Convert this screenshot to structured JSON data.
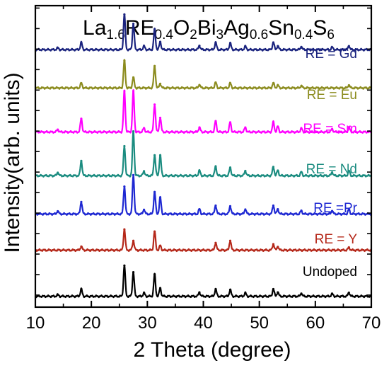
{
  "chart_data": {
    "type": "line",
    "title": {
      "segments": [
        {
          "text": "La",
          "sub": false
        },
        {
          "text": "1.6",
          "sub": true
        },
        {
          "text": "RE",
          "sub": false
        },
        {
          "text": "0.4",
          "sub": true
        },
        {
          "text": "O",
          "sub": false
        },
        {
          "text": "2",
          "sub": true
        },
        {
          "text": "Bi",
          "sub": false
        },
        {
          "text": "3",
          "sub": true
        },
        {
          "text": "Ag",
          "sub": false
        },
        {
          "text": "0.6",
          "sub": true
        },
        {
          "text": "Sn",
          "sub": false
        },
        {
          "text": "0.4",
          "sub": true
        },
        {
          "text": "S",
          "sub": false
        },
        {
          "text": "6",
          "sub": true
        }
      ]
    },
    "xlabel": "2 Theta (degree)",
    "ylabel": "Intensity(arb. units)",
    "xlim": [
      10,
      70
    ],
    "xticks": [
      "10",
      "20",
      "30",
      "40",
      "50",
      "60",
      "70"
    ],
    "ylim": [
      0,
      100
    ],
    "grid": false,
    "series": [
      {
        "name": "RE = Gd",
        "color": "#1a237e",
        "offset": 85.4,
        "x": [
          14.0,
          18.2,
          25.9,
          27.5,
          29.4,
          31.3,
          32.3,
          39.3,
          42.2,
          44.8,
          47.5,
          52.5,
          53.3,
          57.5,
          63.0,
          66.0
        ],
        "y": [
          0.6,
          2.4,
          11.7,
          8.6,
          1.2,
          6.8,
          2.6,
          1.3,
          2.4,
          2.2,
          1.1,
          2.4,
          1.2,
          0.9,
          0.8,
          1.2
        ]
      },
      {
        "name": "RE = Eu",
        "color": "#8c8c1f",
        "offset": 72.7,
        "x": [
          18.2,
          25.9,
          27.5,
          31.3,
          32.3,
          39.3,
          42.2,
          44.8,
          52.5,
          53.3,
          57.5,
          66.0
        ],
        "y": [
          1.6,
          9.1,
          3.5,
          7.3,
          1.4,
          1.0,
          1.8,
          1.6,
          1.6,
          0.9,
          0.7,
          0.9
        ]
      },
      {
        "name": "RE = Sm",
        "color": "#ff00ff",
        "offset": 58.1,
        "x": [
          14.0,
          18.2,
          25.9,
          27.5,
          29.4,
          31.3,
          32.3,
          39.3,
          42.2,
          44.8,
          47.5,
          52.5,
          53.3,
          57.5,
          63.0,
          66.0
        ],
        "y": [
          0.8,
          4.4,
          13.6,
          13.6,
          1.3,
          9.1,
          4.7,
          1.5,
          3.6,
          3.2,
          1.5,
          3.3,
          1.8,
          1.2,
          1.0,
          1.6
        ]
      },
      {
        "name": "RE = Nd",
        "color": "#1b8c80",
        "offset": 43.6,
        "x": [
          14.0,
          18.2,
          25.9,
          27.5,
          29.4,
          31.3,
          32.3,
          39.3,
          42.2,
          44.8,
          47.5,
          52.5,
          53.3,
          57.5,
          63.0,
          66.0
        ],
        "y": [
          1.0,
          4.9,
          9.8,
          14.7,
          1.5,
          6.8,
          6.8,
          1.7,
          3.1,
          2.7,
          1.6,
          2.9,
          1.7,
          1.2,
          1.1,
          1.6
        ]
      },
      {
        "name": "RE =Pr",
        "color": "#1e28d2",
        "offset": 30.9,
        "x": [
          14.0,
          18.2,
          25.9,
          27.5,
          29.4,
          31.3,
          32.3,
          39.3,
          42.2,
          44.8,
          47.5,
          52.5,
          53.3,
          57.5,
          63.0,
          66.0
        ],
        "y": [
          0.9,
          4.0,
          9.1,
          12.9,
          1.4,
          7.3,
          5.5,
          1.6,
          2.8,
          2.6,
          1.5,
          2.8,
          1.6,
          1.1,
          1.0,
          1.5
        ]
      },
      {
        "name": "RE = Y",
        "color": "#b5281a",
        "offset": 18.9,
        "x": [
          18.2,
          25.9,
          27.5,
          31.3,
          32.3,
          42.2,
          44.8,
          52.5,
          53.3,
          66.0
        ],
        "y": [
          1.2,
          6.9,
          3.1,
          6.2,
          1.5,
          2.4,
          3.1,
          2.0,
          1.1,
          0.9
        ]
      },
      {
        "name": "Undoped",
        "color": "#000000",
        "offset": 3.6,
        "x": [
          14.0,
          18.2,
          25.9,
          27.5,
          29.4,
          31.3,
          32.3,
          39.3,
          42.2,
          44.8,
          47.5,
          52.5,
          53.3,
          57.5,
          63.0,
          66.0
        ],
        "y": [
          0.5,
          2.4,
          10.2,
          8.0,
          1.1,
          7.3,
          2.7,
          1.3,
          2.4,
          2.2,
          1.1,
          2.4,
          1.3,
          0.9,
          0.8,
          1.2
        ]
      }
    ]
  }
}
